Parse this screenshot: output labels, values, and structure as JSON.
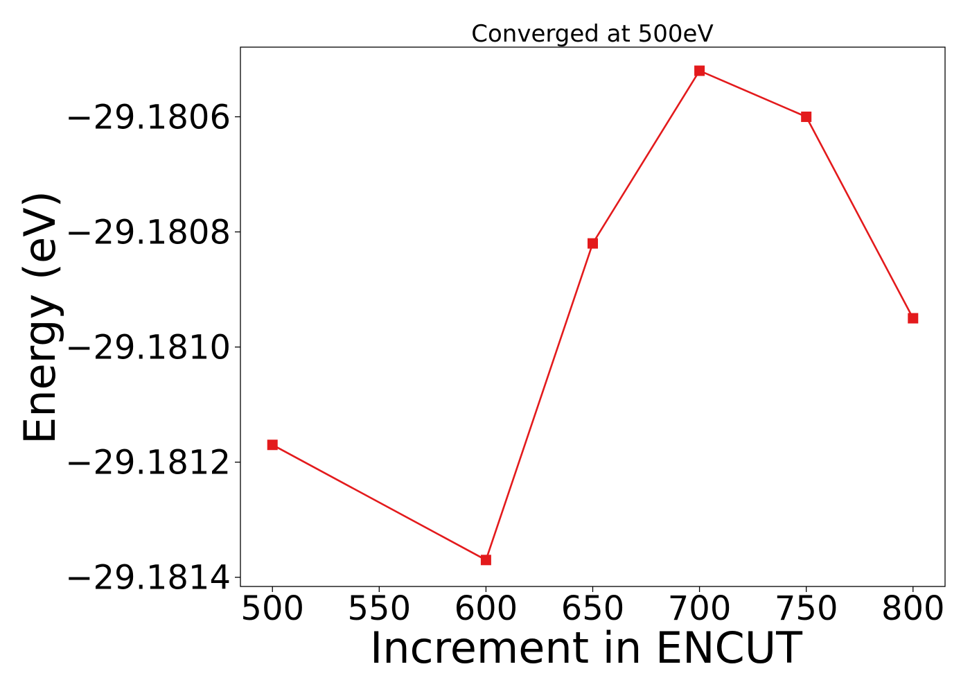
{
  "chart_data": {
    "type": "line",
    "title": "Converged at 500eV",
    "xlabel": "Increment in ENCUT",
    "ylabel": "Energy (eV)",
    "x": [
      500,
      600,
      650,
      700,
      750,
      800
    ],
    "series": [
      {
        "values": [
          -29.18117,
          -29.18137,
          -29.18082,
          -29.18052,
          -29.1806,
          -29.18095
        ],
        "color": "#e31a1c",
        "marker": "square"
      }
    ],
    "xticks": [
      500,
      550,
      600,
      650,
      700,
      750,
      800
    ],
    "xtick_labels": [
      "500",
      "550",
      "600",
      "650",
      "700",
      "750",
      "800"
    ],
    "yticks": [
      -29.1806,
      -29.1808,
      -29.181,
      -29.1812,
      -29.1814
    ],
    "ytick_labels": [
      "−29.1806",
      "−29.1808",
      "−29.1810",
      "−29.1812",
      "−29.1814"
    ],
    "xlim": [
      485,
      815
    ],
    "ylim": [
      -29.181416,
      -29.180479
    ],
    "grid": false,
    "legend": false
  }
}
